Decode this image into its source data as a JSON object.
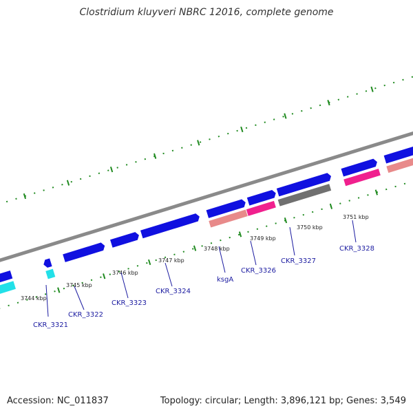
{
  "title": "Clostridium kluyveri NBRC 12016, complete genome",
  "footer": {
    "accession": "Accession: NC_011837",
    "summary": "Topology: circular; Length: 3,896,121 bp; Genes: 3,549"
  },
  "scale_labels": [
    "3744 kbp",
    "3745 kbp",
    "3746 kbp",
    "3747 kbp",
    "3748 kbp",
    "3749 kbp",
    "3750 kbp",
    "3751 kbp"
  ],
  "gene_labels": [
    "CKR_3321",
    "CKR_3322",
    "CKR_3323",
    "CKR_3324",
    "ksgA",
    "CKR_3326",
    "CKR_3327",
    "CKR_3328"
  ],
  "colors": {
    "cds_blue": "#1010e0",
    "cog_cyan": "#22e0e8",
    "cog_pink": "#e88a8a",
    "cog_magenta": "#f0208e",
    "cog_gray": "#707070",
    "backbone": "#8a8a8a",
    "tick_green": "#1f8a1f",
    "label_blue": "#1a1aa0"
  }
}
